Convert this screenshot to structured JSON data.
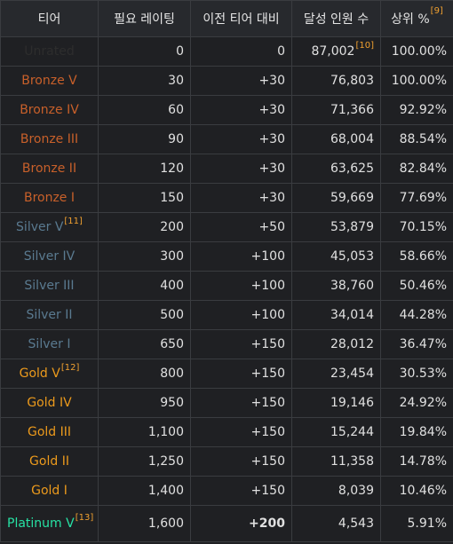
{
  "headers": [
    {
      "label": "티어",
      "ref": ""
    },
    {
      "label": "필요 레이팅",
      "ref": ""
    },
    {
      "label": "이전 티어 대비",
      "ref": ""
    },
    {
      "label": "달성 인원 수",
      "ref": ""
    },
    {
      "label": "상위 %",
      "ref": "[9]"
    }
  ],
  "rows": [
    {
      "tier": "Unrated",
      "tier_ref": "",
      "color": "#2d2d2d",
      "rating": "0",
      "diff": "0",
      "diff_bold": false,
      "count": "87,002",
      "count_ref": "[10]",
      "percent": "100.00%"
    },
    {
      "tier": "Bronze V",
      "tier_ref": "",
      "color": "#c8602a",
      "rating": "30",
      "diff": "+30",
      "diff_bold": false,
      "count": "76,803",
      "count_ref": "",
      "percent": "100.00%"
    },
    {
      "tier": "Bronze IV",
      "tier_ref": "",
      "color": "#c8602a",
      "rating": "60",
      "diff": "+30",
      "diff_bold": false,
      "count": "71,366",
      "count_ref": "",
      "percent": "92.92%"
    },
    {
      "tier": "Bronze III",
      "tier_ref": "",
      "color": "#c8602a",
      "rating": "90",
      "diff": "+30",
      "diff_bold": false,
      "count": "68,004",
      "count_ref": "",
      "percent": "88.54%"
    },
    {
      "tier": "Bronze II",
      "tier_ref": "",
      "color": "#c8602a",
      "rating": "120",
      "diff": "+30",
      "diff_bold": false,
      "count": "63,625",
      "count_ref": "",
      "percent": "82.84%"
    },
    {
      "tier": "Bronze I",
      "tier_ref": "",
      "color": "#c8602a",
      "rating": "150",
      "diff": "+30",
      "diff_bold": false,
      "count": "59,669",
      "count_ref": "",
      "percent": "77.69%"
    },
    {
      "tier": "Silver V",
      "tier_ref": "[11]",
      "color": "#5a7a90",
      "rating": "200",
      "diff": "+50",
      "diff_bold": false,
      "count": "53,879",
      "count_ref": "",
      "percent": "70.15%"
    },
    {
      "tier": "Silver IV",
      "tier_ref": "",
      "color": "#5a7a90",
      "rating": "300",
      "diff": "+100",
      "diff_bold": false,
      "count": "45,053",
      "count_ref": "",
      "percent": "58.66%"
    },
    {
      "tier": "Silver III",
      "tier_ref": "",
      "color": "#5a7a90",
      "rating": "400",
      "diff": "+100",
      "diff_bold": false,
      "count": "38,760",
      "count_ref": "",
      "percent": "50.46%"
    },
    {
      "tier": "Silver II",
      "tier_ref": "",
      "color": "#5a7a90",
      "rating": "500",
      "diff": "+100",
      "diff_bold": false,
      "count": "34,014",
      "count_ref": "",
      "percent": "44.28%"
    },
    {
      "tier": "Silver I",
      "tier_ref": "",
      "color": "#5a7a90",
      "rating": "650",
      "diff": "+150",
      "diff_bold": false,
      "count": "28,012",
      "count_ref": "",
      "percent": "36.47%"
    },
    {
      "tier": "Gold V",
      "tier_ref": "[12]",
      "color": "#ec9a1c",
      "rating": "800",
      "diff": "+150",
      "diff_bold": false,
      "count": "23,454",
      "count_ref": "",
      "percent": "30.53%"
    },
    {
      "tier": "Gold IV",
      "tier_ref": "",
      "color": "#ec9a1c",
      "rating": "950",
      "diff": "+150",
      "diff_bold": false,
      "count": "19,146",
      "count_ref": "",
      "percent": "24.92%"
    },
    {
      "tier": "Gold III",
      "tier_ref": "",
      "color": "#ec9a1c",
      "rating": "1,100",
      "diff": "+150",
      "diff_bold": false,
      "count": "15,244",
      "count_ref": "",
      "percent": "19.84%"
    },
    {
      "tier": "Gold II",
      "tier_ref": "",
      "color": "#ec9a1c",
      "rating": "1,250",
      "diff": "+150",
      "diff_bold": false,
      "count": "11,358",
      "count_ref": "",
      "percent": "14.78%"
    },
    {
      "tier": "Gold I",
      "tier_ref": "",
      "color": "#ec9a1c",
      "rating": "1,400",
      "diff": "+150",
      "diff_bold": false,
      "count": "8,039",
      "count_ref": "",
      "percent": "10.46%"
    },
    {
      "tier": "Platinum V",
      "tier_ref": "[13]",
      "color": "#27e2a4",
      "rating": "1,600",
      "diff": "+200",
      "diff_bold": true,
      "count": "4,543",
      "count_ref": "",
      "percent": "5.91%"
    }
  ]
}
